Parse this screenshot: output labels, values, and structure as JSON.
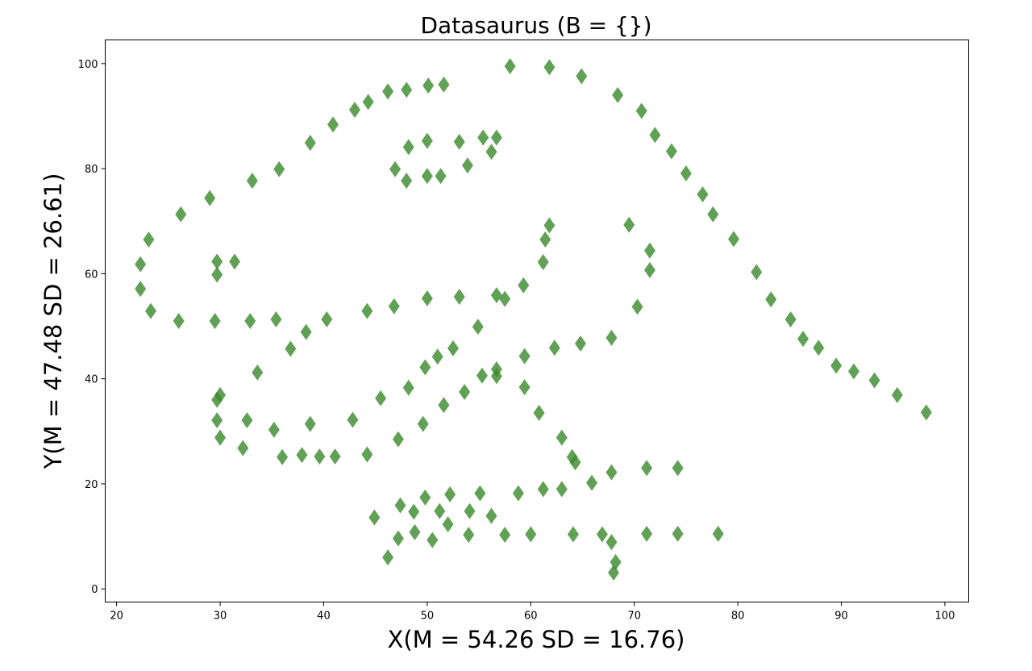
{
  "chart_data": {
    "type": "scatter",
    "title": "Datasaurus (B = {})",
    "xlabel": "X(M = 54.26 SD = 16.76)",
    "ylabel": "Y(M = 47.48 SD = 26.61)",
    "xlim": [
      18.9,
      102.3
    ],
    "ylim": [
      -2.5,
      104.5
    ],
    "xticks": [
      20,
      30,
      40,
      50,
      60,
      70,
      80,
      90,
      100
    ],
    "yticks": [
      0,
      20,
      40,
      60,
      80,
      100
    ],
    "grid": false,
    "marker": "diamond",
    "color": "#3a8a2a",
    "series": [
      {
        "points": [
          [
            22.3,
            61.8
          ],
          [
            22.3,
            57.1
          ],
          [
            23.1,
            66.5
          ],
          [
            23.3,
            52.9
          ],
          [
            26.0,
            51.0
          ],
          [
            26.2,
            71.3
          ],
          [
            29.0,
            74.4
          ],
          [
            29.5,
            51.0
          ],
          [
            29.7,
            62.3
          ],
          [
            29.7,
            59.8
          ],
          [
            29.7,
            36.0
          ],
          [
            29.7,
            32.1
          ],
          [
            30.0,
            36.9
          ],
          [
            30.0,
            28.8
          ],
          [
            31.4,
            62.3
          ],
          [
            32.2,
            26.8
          ],
          [
            32.6,
            32.1
          ],
          [
            32.9,
            51.0
          ],
          [
            33.1,
            77.7
          ],
          [
            33.6,
            41.2
          ],
          [
            35.2,
            30.3
          ],
          [
            35.4,
            51.3
          ],
          [
            35.7,
            79.9
          ],
          [
            36.0,
            25.1
          ],
          [
            36.8,
            45.7
          ],
          [
            37.9,
            25.5
          ],
          [
            38.3,
            48.9
          ],
          [
            38.7,
            31.4
          ],
          [
            38.7,
            84.9
          ],
          [
            39.6,
            25.2
          ],
          [
            40.3,
            51.3
          ],
          [
            40.9,
            88.4
          ],
          [
            41.1,
            25.2
          ],
          [
            42.8,
            32.2
          ],
          [
            43.0,
            91.2
          ],
          [
            44.2,
            25.6
          ],
          [
            44.2,
            52.9
          ],
          [
            44.3,
            92.7
          ],
          [
            44.9,
            13.6
          ],
          [
            45.5,
            36.3
          ],
          [
            46.2,
            6.0
          ],
          [
            46.2,
            94.7
          ],
          [
            46.8,
            53.8
          ],
          [
            46.9,
            79.9
          ],
          [
            47.2,
            9.6
          ],
          [
            47.2,
            28.5
          ],
          [
            47.4,
            15.9
          ],
          [
            48.0,
            95.0
          ],
          [
            48.0,
            77.7
          ],
          [
            48.2,
            84.1
          ],
          [
            48.2,
            38.3
          ],
          [
            48.7,
            14.7
          ],
          [
            48.8,
            10.8
          ],
          [
            49.6,
            31.4
          ],
          [
            49.8,
            42.2
          ],
          [
            49.8,
            17.4
          ],
          [
            50.0,
            55.3
          ],
          [
            50.0,
            78.6
          ],
          [
            50.0,
            85.3
          ],
          [
            50.1,
            95.8
          ],
          [
            50.5,
            9.3
          ],
          [
            51.0,
            44.2
          ],
          [
            51.2,
            14.8
          ],
          [
            51.3,
            78.6
          ],
          [
            51.6,
            35.0
          ],
          [
            51.6,
            96.0
          ],
          [
            52.0,
            12.3
          ],
          [
            52.2,
            18.0
          ],
          [
            52.5,
            45.8
          ],
          [
            53.1,
            85.1
          ],
          [
            53.1,
            55.6
          ],
          [
            53.6,
            37.5
          ],
          [
            53.9,
            80.6
          ],
          [
            54.0,
            10.3
          ],
          [
            54.1,
            14.8
          ],
          [
            54.9,
            49.9
          ],
          [
            55.1,
            18.2
          ],
          [
            55.3,
            40.6
          ],
          [
            55.4,
            85.9
          ],
          [
            56.2,
            13.9
          ],
          [
            56.2,
            83.2
          ],
          [
            56.7,
            41.8
          ],
          [
            56.7,
            55.9
          ],
          [
            56.7,
            85.9
          ],
          [
            56.7,
            40.5
          ],
          [
            57.5,
            55.2
          ],
          [
            57.5,
            10.3
          ],
          [
            58.0,
            99.5
          ],
          [
            58.8,
            18.2
          ],
          [
            59.3,
            57.8
          ],
          [
            59.4,
            44.3
          ],
          [
            59.4,
            38.4
          ],
          [
            60.0,
            10.4
          ],
          [
            60.8,
            33.5
          ],
          [
            61.2,
            62.2
          ],
          [
            61.2,
            19.0
          ],
          [
            61.4,
            66.5
          ],
          [
            61.8,
            69.2
          ],
          [
            61.8,
            99.3
          ],
          [
            62.3,
            45.9
          ],
          [
            63.0,
            19.0
          ],
          [
            63.0,
            28.8
          ],
          [
            64.0,
            25.1
          ],
          [
            64.1,
            10.4
          ],
          [
            64.3,
            24.1
          ],
          [
            64.8,
            46.7
          ],
          [
            64.9,
            97.6
          ],
          [
            65.9,
            20.2
          ],
          [
            66.9,
            10.4
          ],
          [
            67.8,
            47.8
          ],
          [
            67.8,
            22.2
          ],
          [
            67.8,
            8.9
          ],
          [
            68.0,
            3.1
          ],
          [
            68.2,
            5.1
          ],
          [
            68.4,
            94.0
          ],
          [
            69.5,
            69.3
          ],
          [
            70.3,
            53.7
          ],
          [
            70.7,
            91.0
          ],
          [
            71.2,
            23.0
          ],
          [
            71.2,
            10.5
          ],
          [
            71.5,
            64.4
          ],
          [
            71.5,
            60.7
          ],
          [
            72.0,
            86.4
          ],
          [
            73.6,
            83.3
          ],
          [
            74.2,
            23.0
          ],
          [
            74.2,
            10.5
          ],
          [
            75.0,
            79.1
          ],
          [
            76.6,
            75.1
          ],
          [
            77.6,
            71.3
          ],
          [
            78.1,
            10.5
          ],
          [
            79.6,
            66.6
          ],
          [
            81.8,
            60.3
          ],
          [
            83.2,
            55.1
          ],
          [
            85.1,
            51.3
          ],
          [
            86.3,
            47.6
          ],
          [
            87.8,
            45.9
          ],
          [
            89.5,
            42.5
          ],
          [
            91.2,
            41.4
          ],
          [
            93.2,
            39.7
          ],
          [
            95.4,
            36.9
          ],
          [
            98.2,
            33.6
          ]
        ]
      }
    ]
  }
}
